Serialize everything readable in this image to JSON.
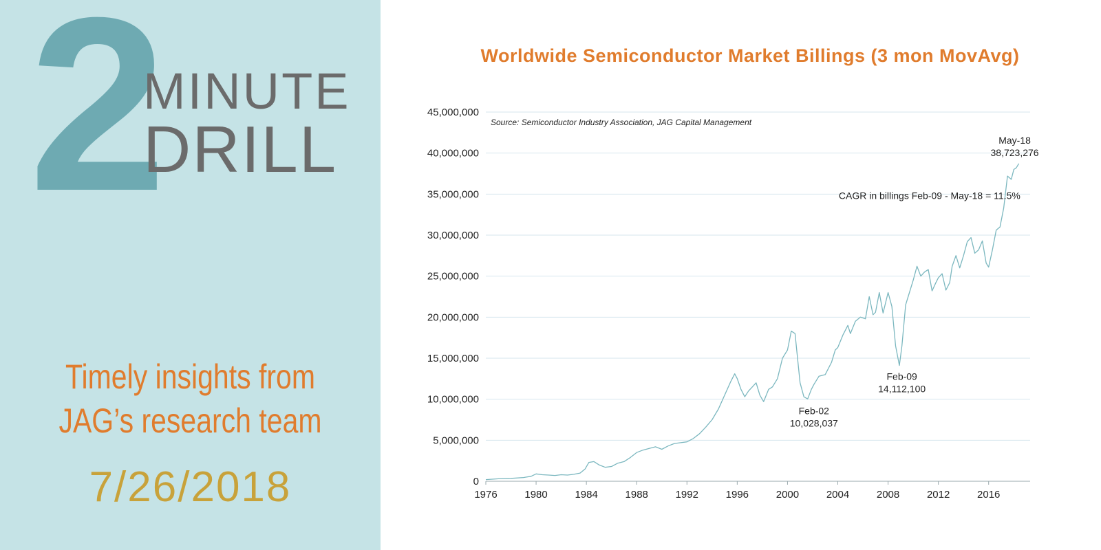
{
  "branding": {
    "number": "2",
    "word1": "MINUTE",
    "word2": "DRILL",
    "tagline_line1": "Timely insights from",
    "tagline_line2": "JAG’s research team",
    "date": "7/26/2018",
    "colors": {
      "panel": "#c5e3e6",
      "number": "#6eaab2",
      "words": "#6b6b6b",
      "tagline": "#e07c2d",
      "date": "#c8a23a"
    }
  },
  "chart_data": {
    "type": "line",
    "title": "Worldwide Semiconductor Market Billings (3 mon MovAvg)",
    "source": "Source: Semiconductor Industry Association, JAG Capital Management",
    "xlabel": "",
    "ylabel": "",
    "xlim": [
      1976,
      2020
    ],
    "ylim": [
      0,
      45000000
    ],
    "grid": true,
    "line_color": "#7bb7bf",
    "x_ticks": [
      1976,
      1980,
      1984,
      1988,
      1992,
      1996,
      2000,
      2004,
      2008,
      2012,
      2016
    ],
    "x_tick_labels": [
      "1976",
      "1980",
      "1984",
      "1988",
      "1992",
      "1996",
      "2000",
      "2004",
      "2008",
      "2012",
      "2016"
    ],
    "y_ticks": [
      0,
      5000000,
      10000000,
      15000000,
      20000000,
      25000000,
      30000000,
      35000000,
      40000000,
      45000000
    ],
    "y_tick_labels": [
      "0",
      "5,000,000",
      "10,000,000",
      "15,000,000",
      "20,000,000",
      "25,000,000",
      "30,000,000",
      "35,000,000",
      "40,000,000",
      "45,000,000"
    ],
    "series": [
      {
        "x": [
          1976.0,
          1977.0,
          1978.0,
          1979.0,
          1979.6,
          1980.0,
          1980.5,
          1981.0,
          1981.5,
          1982.0,
          1982.5,
          1983.0,
          1983.5,
          1983.9,
          1984.2,
          1984.6,
          1985.0,
          1985.5,
          1986.0,
          1986.5,
          1987.0,
          1987.5,
          1988.0,
          1988.5,
          1989.0,
          1989.5,
          1990.0,
          1990.5,
          1991.0,
          1991.5,
          1992.0,
          1992.5,
          1993.0,
          1993.5,
          1994.0,
          1994.5,
          1995.0,
          1995.5,
          1995.8,
          1996.0,
          1996.3,
          1996.6,
          1996.9,
          1997.2,
          1997.5,
          1997.8,
          1998.1,
          1998.5,
          1998.8,
          1999.2,
          1999.6,
          2000.0,
          2000.3,
          2000.6,
          2000.8,
          2001.0,
          2001.3,
          2001.6,
          2001.9,
          2002.1,
          2002.5,
          2003.0,
          2003.5,
          2003.8,
          2004.0,
          2004.4,
          2004.8,
          2005.0,
          2005.4,
          2005.8,
          2006.2,
          2006.5,
          2006.8,
          2007.0,
          2007.3,
          2007.6,
          2008.0,
          2008.3,
          2008.6,
          2008.9,
          2009.1,
          2009.4,
          2009.7,
          2010.0,
          2010.3,
          2010.6,
          2010.9,
          2011.2,
          2011.5,
          2011.8,
          2012.0,
          2012.3,
          2012.6,
          2012.9,
          2013.1,
          2013.4,
          2013.7,
          2014.0,
          2014.3,
          2014.6,
          2014.9,
          2015.2,
          2015.5,
          2015.8,
          2016.0,
          2016.3,
          2016.6,
          2016.9,
          2017.2,
          2017.5,
          2017.8,
          2018.0,
          2018.2,
          2018.4
        ],
        "y": [
          200000,
          300000,
          350000,
          450000,
          600000,
          900000,
          800000,
          750000,
          700000,
          800000,
          750000,
          850000,
          1000000,
          1500000,
          2300000,
          2400000,
          2000000,
          1700000,
          1800000,
          2200000,
          2400000,
          2900000,
          3500000,
          3800000,
          4000000,
          4200000,
          3900000,
          4300000,
          4600000,
          4700000,
          4800000,
          5200000,
          5800000,
          6600000,
          7500000,
          8800000,
          10500000,
          12200000,
          13100000,
          12500000,
          11200000,
          10300000,
          11000000,
          11500000,
          12000000,
          10500000,
          9700000,
          11200000,
          11500000,
          12500000,
          15000000,
          16000000,
          18300000,
          18000000,
          15000000,
          12000000,
          10300000,
          10028037,
          11200000,
          11800000,
          12800000,
          13000000,
          14500000,
          16000000,
          16300000,
          17800000,
          19000000,
          18000000,
          19500000,
          20000000,
          19800000,
          22500000,
          20300000,
          20600000,
          23000000,
          20500000,
          23000000,
          21300000,
          16500000,
          14112100,
          16500000,
          21500000,
          23000000,
          24500000,
          26200000,
          25000000,
          25500000,
          25800000,
          23200000,
          24200000,
          24800000,
          25300000,
          23300000,
          24200000,
          26200000,
          27500000,
          26000000,
          27500000,
          29200000,
          29700000,
          27800000,
          28200000,
          29300000,
          26600000,
          26100000,
          28200000,
          30600000,
          31000000,
          33300000,
          37200000,
          36800000,
          38000000,
          38200000,
          38723276
        ]
      }
    ],
    "annotations": [
      {
        "label": "Feb-02",
        "value": "10,028,037",
        "x": 2002.1,
        "y": 10028037
      },
      {
        "label": "Feb-09",
        "value": "14,112,100",
        "x": 2009.1,
        "y": 14112100
      },
      {
        "label": "May-18",
        "value": "38,723,276",
        "x": 2018.4,
        "y": 38723276
      }
    ],
    "cagr_note": "CAGR in billings Feb-09 - May-18 = 11.5%"
  }
}
